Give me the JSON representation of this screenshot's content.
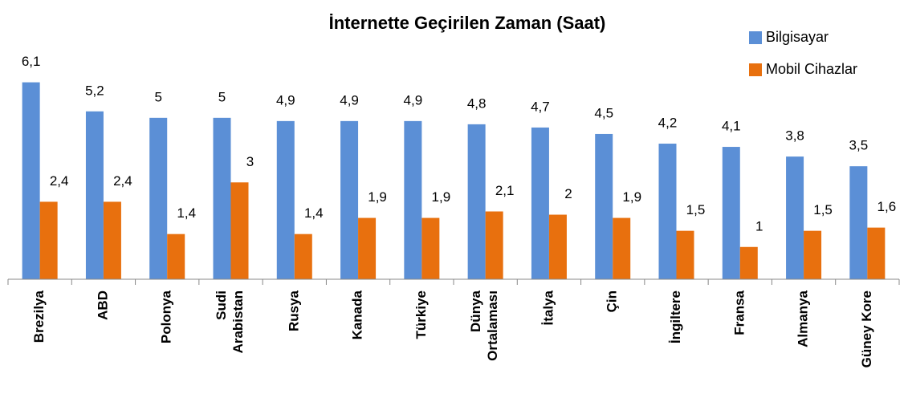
{
  "chart_data": {
    "type": "bar",
    "title": "İnternette Geçirilen Zaman (Saat)",
    "categories": [
      "Brezilya",
      "ABD",
      "Polonya",
      "Sudi\nArabistan",
      "Rusya",
      "Kanada",
      "Türkiye",
      "Dünya\nOrtalaması",
      "İtalya",
      "Çin",
      "İngiltere",
      "Fransa",
      "Almanya",
      "Güney Kore"
    ],
    "series": [
      {
        "name": "Bilgisayar",
        "color": "#5b8fd6",
        "values": [
          6.1,
          5.2,
          5,
          5,
          4.9,
          4.9,
          4.9,
          4.8,
          4.7,
          4.5,
          4.2,
          4.1,
          3.8,
          3.5
        ],
        "value_labels": [
          "6,1",
          "5,2",
          "5",
          "5",
          "4,9",
          "4,9",
          "4,9",
          "4,8",
          "4,7",
          "4,5",
          "4,2",
          "4,1",
          "3,8",
          "3,5"
        ]
      },
      {
        "name": "Mobil Cihazlar",
        "color": "#e8700e",
        "values": [
          2.4,
          2.4,
          1.4,
          3,
          1.4,
          1.9,
          1.9,
          2.1,
          2,
          1.9,
          1.5,
          1,
          1.5,
          1.6
        ],
        "value_labels": [
          "2,4",
          "2,4",
          "1,4",
          "3",
          "1,4",
          "1,9",
          "1,9",
          "2,1",
          "2",
          "1,9",
          "1,5",
          "1",
          "1,5",
          "1,6"
        ]
      }
    ],
    "ylim": [
      0,
      8.6
    ],
    "legend": "top-right"
  }
}
